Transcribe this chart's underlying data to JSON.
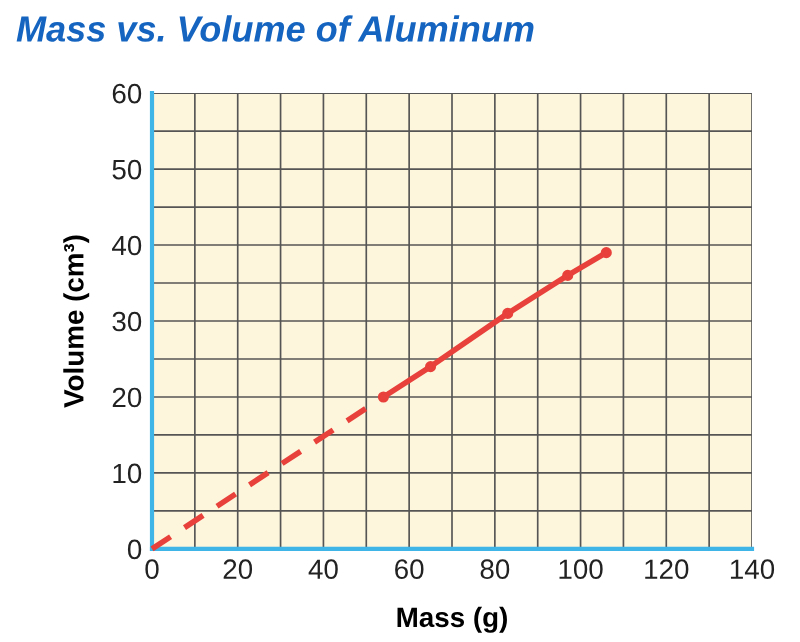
{
  "chart_data": {
    "type": "line",
    "title": "Mass vs. Volume of Aluminum",
    "xlabel": "Mass (g)",
    "ylabel": "Volume (cm³)",
    "series": [
      {
        "color": "#e8403a",
        "x": [
          0,
          54
        ],
        "values": [
          0,
          20
        ],
        "line_style": "dashed"
      },
      {
        "color": "#e8403a",
        "x": [
          54,
          65,
          83,
          97,
          106
        ],
        "values": [
          20,
          24,
          31,
          36,
          39
        ],
        "line_style": "solid",
        "marker": "circle"
      }
    ],
    "xlim": [
      0,
      140
    ],
    "ylim": [
      0,
      60
    ],
    "xticks": [
      0,
      {
        "value": 10,
        "label": null
      },
      20,
      {
        "value": 30,
        "label": null
      },
      40,
      {
        "value": 50,
        "label": null
      },
      60,
      {
        "value": 70,
        "label": null
      },
      80,
      {
        "value": 90,
        "label": null
      },
      100,
      {
        "value": 110,
        "label": null
      },
      120,
      {
        "value": 130,
        "label": null
      },
      140
    ],
    "yticks": [
      0,
      {
        "value": 5,
        "label": null
      },
      10,
      {
        "value": 15,
        "label": null
      },
      20,
      {
        "value": 25,
        "label": null
      },
      30,
      {
        "value": 35,
        "label": null
      },
      40,
      {
        "value": 45,
        "label": null
      },
      50,
      {
        "value": 55,
        "label": null
      },
      60
    ],
    "grid": true,
    "legend": false
  }
}
